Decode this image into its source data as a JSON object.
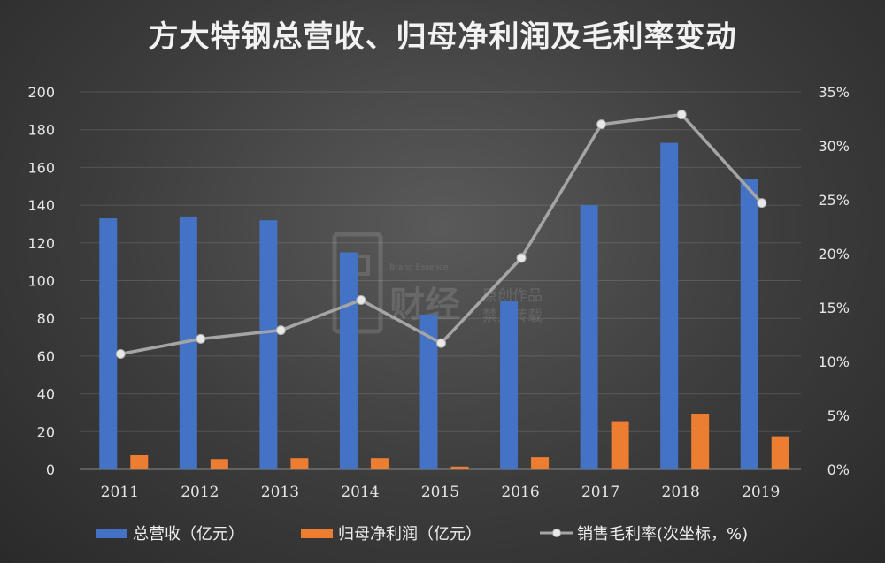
{
  "chart_data": {
    "type": "bar",
    "title": "方大特钢总营收、归母净利润及毛利率变动",
    "categories": [
      "2011",
      "2012",
      "2013",
      "2014",
      "2015",
      "2016",
      "2017",
      "2018",
      "2019"
    ],
    "series": [
      {
        "name": "总营收（亿元）",
        "type": "bar",
        "axis": "left",
        "color": "#4472c4",
        "values": [
          133,
          134,
          132,
          115,
          82,
          89,
          140,
          173,
          154
        ]
      },
      {
        "name": "归母净利润（亿元）",
        "type": "bar",
        "axis": "left",
        "color": "#ed7d31",
        "values": [
          7.5,
          5.5,
          6,
          6,
          1.5,
          6.5,
          25.5,
          29.5,
          17.5
        ]
      },
      {
        "name": "销售毛利率(次坐标，%)",
        "type": "line",
        "axis": "right",
        "color": "#a5a5a5",
        "values": [
          10.7,
          12.1,
          12.9,
          15.7,
          11.7,
          19.6,
          32.0,
          32.9,
          24.7
        ]
      }
    ],
    "yticks_left": [
      "0",
      "20",
      "40",
      "60",
      "80",
      "100",
      "120",
      "140",
      "160",
      "180",
      "200"
    ],
    "yticks_right": [
      "0%",
      "5%",
      "10%",
      "15%",
      "20%",
      "25%",
      "30%",
      "35%"
    ],
    "ylim_left": [
      0,
      200
    ],
    "ylim_right": [
      0,
      35
    ],
    "grid": true,
    "legend_position": "bottom"
  },
  "watermark": {
    "brand": "Brand Essence",
    "main": "财经",
    "line1": "原创作品",
    "line2": "禁止转载"
  }
}
